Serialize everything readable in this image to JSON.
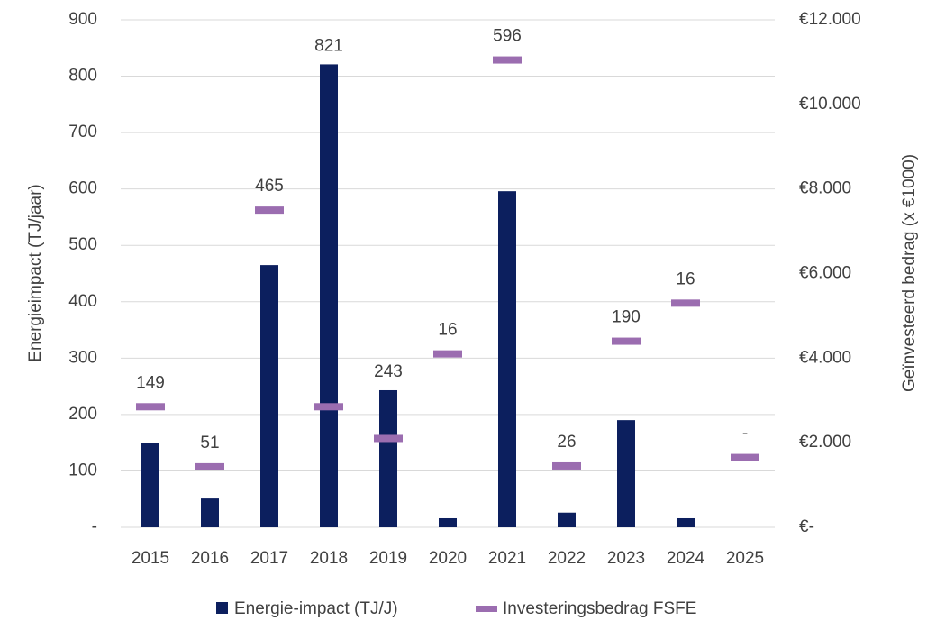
{
  "chart_data": {
    "type": "bar",
    "categories": [
      "2015",
      "2016",
      "2017",
      "2018",
      "2019",
      "2020",
      "2021",
      "2022",
      "2023",
      "2024",
      "2025"
    ],
    "series": [
      {
        "name": "Energie-impact (TJ/J)",
        "type": "bar",
        "color": "#0c1f5e",
        "values": [
          149,
          51,
          465,
          821,
          243,
          16,
          596,
          26,
          190,
          16,
          0
        ],
        "value_labels": [
          "149",
          "51",
          "465",
          "821",
          "243",
          "16",
          "596",
          "26",
          "190",
          "16",
          "-"
        ]
      },
      {
        "name": "Investeringsbedrag FSFE",
        "type": "marker",
        "axis": "y2",
        "color": "#9b6db0",
        "values": [
          2850,
          1430,
          7500,
          2850,
          2100,
          4100,
          11050,
          1450,
          4400,
          5300,
          1650
        ]
      }
    ],
    "ylabel": "Energieimpact (TJ/jaar)",
    "y2label": "Geïnvesteerd bedrag (x €1000)",
    "ylim": [
      0,
      900
    ],
    "yticks": [
      {
        "value": 0,
        "label": "-"
      },
      100,
      200,
      300,
      400,
      500,
      600,
      700,
      800,
      900
    ],
    "y2lim": [
      0,
      12000
    ],
    "y2ticks": [
      {
        "value": 0,
        "label": "€-"
      },
      {
        "value": 2000,
        "label": "€2.000"
      },
      {
        "value": 4000,
        "label": "€4.000"
      },
      {
        "value": 6000,
        "label": "€6.000"
      },
      {
        "value": 8000,
        "label": "€8.000"
      },
      {
        "value": 10000,
        "label": "€10.000"
      },
      {
        "value": 12000,
        "label": "€12.000"
      }
    ],
    "grid": true,
    "legend": "bottom"
  }
}
